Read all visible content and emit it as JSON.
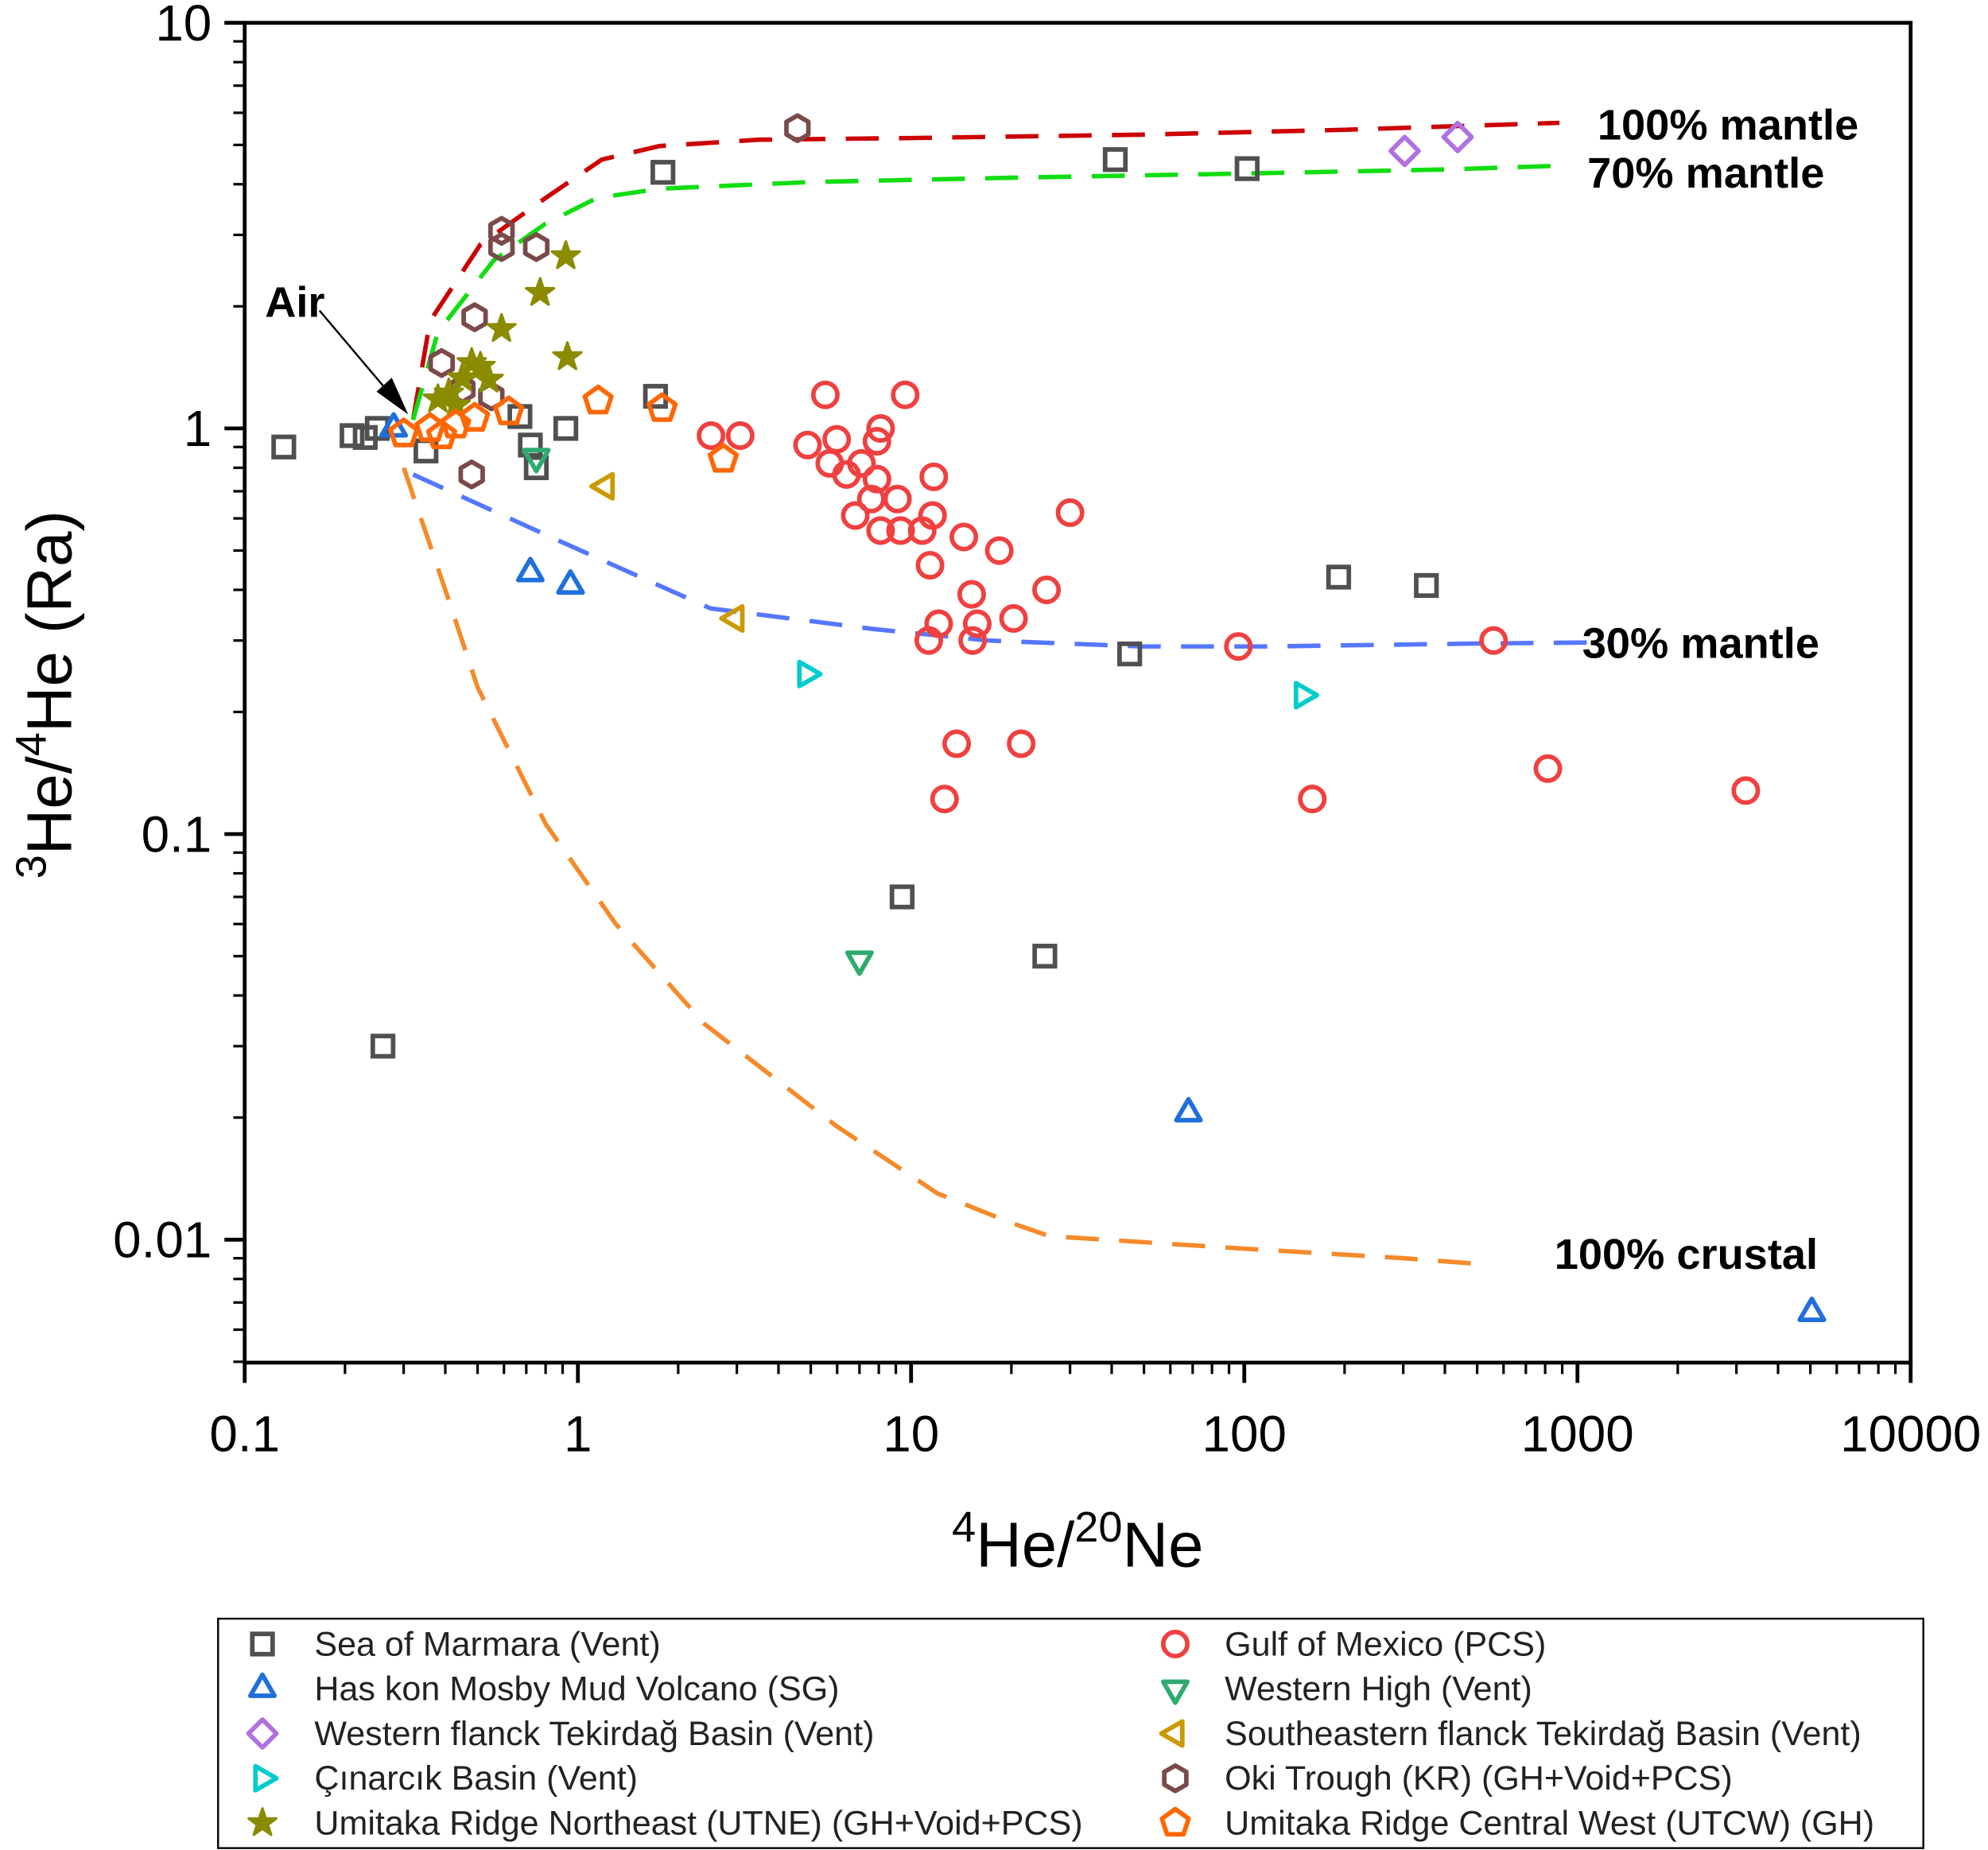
{
  "chart_data": {
    "type": "scatter",
    "xscale": "log",
    "yscale": "log",
    "xlim": [
      0.1,
      10000
    ],
    "ylim": [
      0.005,
      10
    ],
    "xticks": [
      {
        "v": 0.1,
        "label": "0.1"
      },
      {
        "v": 1,
        "label": "1"
      },
      {
        "v": 10,
        "label": "10"
      },
      {
        "v": 100,
        "label": "100"
      },
      {
        "v": 1000,
        "label": "1000"
      },
      {
        "v": 10000,
        "label": "10000"
      }
    ],
    "yticks": [
      {
        "v": 0.01,
        "label": "0.01"
      },
      {
        "v": 0.1,
        "label": "0.1"
      },
      {
        "v": 1,
        "label": "1"
      },
      {
        "v": 10,
        "label": "10"
      }
    ],
    "xlabel": {
      "sup1": "4",
      "base1": "He/",
      "sup2": "20",
      "base2": "Ne"
    },
    "ylabel": {
      "sup1": "3",
      "base1": "He/",
      "sup2": "4",
      "base2": "He (Ra)"
    },
    "grid": false,
    "legend_placement": "bottom",
    "annotations": [
      {
        "text": "Air",
        "points_to": [
          0.3,
          1.0
        ]
      }
    ],
    "curves": [
      {
        "label": "100% mantle",
        "color": "#cc0000",
        "x": [
          0.32,
          0.36,
          0.51,
          0.8,
          1.18,
          1.76,
          3.5,
          10,
          50,
          200,
          883
        ],
        "y": [
          1.05,
          1.84,
          2.84,
          3.7,
          4.6,
          4.97,
          5.15,
          5.2,
          5.3,
          5.45,
          5.67
        ]
      },
      {
        "label": "70% mantle",
        "color": "#11dd11",
        "x": [
          0.32,
          0.38,
          0.56,
          0.8,
          1.14,
          1.76,
          5,
          20,
          100,
          400,
          950
        ],
        "y": [
          1.05,
          1.73,
          2.6,
          3.2,
          3.7,
          3.9,
          4.05,
          4.15,
          4.25,
          4.35,
          4.45
        ]
      },
      {
        "label": "30% mantle",
        "color": "#5577ff",
        "x": [
          0.32,
          0.87,
          2.5,
          7.8,
          17,
          49,
          117,
          500,
          1260
        ],
        "y": [
          0.77,
          0.53,
          0.36,
          0.32,
          0.3,
          0.29,
          0.29,
          0.295,
          0.297
        ]
      },
      {
        "label": "100% crustal",
        "color": "#f58a2a",
        "x": [
          0.3,
          0.4,
          0.5,
          0.8,
          1.3,
          2.4,
          6,
          12,
          20,
          26,
          100,
          300,
          520
        ],
        "y": [
          0.8,
          0.4,
          0.23,
          0.106,
          0.06,
          0.034,
          0.019,
          0.013,
          0.011,
          0.0102,
          0.0095,
          0.009,
          0.0087
        ]
      }
    ],
    "series": [
      {
        "name": "Sea of Marmara (Vent)",
        "marker": "square",
        "color": "#505050",
        "points": [
          [
            0.131,
            0.9
          ],
          [
            0.21,
            0.96
          ],
          [
            0.23,
            0.95
          ],
          [
            0.25,
            1.0
          ],
          [
            0.26,
            0.03
          ],
          [
            0.35,
            0.88
          ],
          [
            0.67,
            1.07
          ],
          [
            0.72,
            0.91
          ],
          [
            0.75,
            0.8
          ],
          [
            0.92,
            1.0
          ],
          [
            1.71,
            1.2
          ],
          [
            1.8,
            4.28
          ],
          [
            9.4,
            0.07
          ],
          [
            25.2,
            0.05
          ],
          [
            41,
            4.6
          ],
          [
            45.3,
            0.278
          ],
          [
            102,
            4.37
          ],
          [
            192,
            0.43
          ],
          [
            352,
            0.41
          ]
        ]
      },
      {
        "name": "Gulf of Mexico (PCS)",
        "marker": "circle",
        "color": "#f04040",
        "points": [
          [
            2.51,
            0.96
          ],
          [
            3.07,
            0.96
          ],
          [
            5.53,
            1.21
          ],
          [
            9.6,
            1.21
          ],
          [
            4.89,
            0.91
          ],
          [
            5.98,
            0.94
          ],
          [
            5.7,
            0.82
          ],
          [
            6.4,
            0.77
          ],
          [
            7.1,
            0.82
          ],
          [
            7.9,
            0.93
          ],
          [
            8.1,
            1.0
          ],
          [
            6.8,
            0.61
          ],
          [
            7.6,
            0.67
          ],
          [
            7.9,
            0.75
          ],
          [
            9.1,
            0.67
          ],
          [
            8.1,
            0.56
          ],
          [
            9.3,
            0.56
          ],
          [
            10.8,
            0.56
          ],
          [
            11.7,
            0.76
          ],
          [
            11.6,
            0.61
          ],
          [
            11.4,
            0.46
          ],
          [
            14.4,
            0.54
          ],
          [
            18.4,
            0.5
          ],
          [
            30.0,
            0.62
          ],
          [
            25.5,
            0.4
          ],
          [
            15.2,
            0.39
          ],
          [
            20.3,
            0.34
          ],
          [
            15.8,
            0.33
          ],
          [
            12.1,
            0.33
          ],
          [
            11.3,
            0.3
          ],
          [
            15.3,
            0.3
          ],
          [
            13.7,
            0.167
          ],
          [
            21.4,
            0.167
          ],
          [
            12.6,
            0.122
          ],
          [
            96,
            0.29
          ],
          [
            560,
            0.3
          ],
          [
            160,
            0.122
          ],
          [
            815,
            0.145
          ],
          [
            3200,
            0.128
          ]
        ]
      },
      {
        "name": "Has kon Mosby Mud Volcano (SG)",
        "marker": "triangle-up",
        "color": "#1f6fdc",
        "points": [
          [
            0.28,
            1.0
          ],
          [
            0.72,
            0.44
          ],
          [
            0.95,
            0.41
          ],
          [
            68,
            0.0205
          ],
          [
            5050,
            0.0066
          ]
        ]
      },
      {
        "name": "Western High (Vent)",
        "marker": "triangle-down",
        "color": "#2fab6f",
        "points": [
          [
            0.75,
            0.85
          ],
          [
            7.0,
            0.049
          ]
        ]
      },
      {
        "name": "Western flanck Tekirdağ Basin (Vent)",
        "marker": "diamond",
        "color": "#b070e0",
        "points": [
          [
            303,
            4.83
          ],
          [
            437,
            5.23
          ]
        ]
      },
      {
        "name": "Southeastern flanck Tekirdağ Basin (Vent)",
        "marker": "triangle-left",
        "color": "#cc9900",
        "points": [
          [
            1.21,
            0.72
          ],
          [
            2.97,
            0.34
          ]
        ]
      },
      {
        "name": "Çınarcık Basin (Vent)",
        "marker": "triangle-right",
        "color": "#00cccc",
        "points": [
          [
            4.85,
            0.248
          ],
          [
            150,
            0.22
          ]
        ]
      },
      {
        "name": "Oki Trough (KR) (GH+Void+PCS)",
        "marker": "hexagon",
        "color": "#7a4a4a",
        "points": [
          [
            4.56,
            5.5
          ],
          [
            0.59,
            3.07
          ],
          [
            0.59,
            2.8
          ],
          [
            0.75,
            2.8
          ],
          [
            0.49,
            1.88
          ],
          [
            0.39,
            1.45
          ],
          [
            0.48,
            0.77
          ],
          [
            0.55,
            1.2
          ],
          [
            0.45,
            1.25
          ]
        ]
      },
      {
        "name": "Umitaka Ridge Northeast (UTNE) (GH+Void+PCS)",
        "marker": "star",
        "color": "#8b8b00",
        "points": [
          [
            0.92,
            2.66
          ],
          [
            0.77,
            2.16
          ],
          [
            0.59,
            1.76
          ],
          [
            0.93,
            1.5
          ],
          [
            0.48,
            1.45
          ],
          [
            0.51,
            1.42
          ],
          [
            0.45,
            1.33
          ],
          [
            0.41,
            1.22
          ],
          [
            0.54,
            1.32
          ],
          [
            0.38,
            1.18
          ],
          [
            0.43,
            1.14
          ]
        ]
      },
      {
        "name": "Umitaka Ridge Central West (UTCW) (GH)",
        "marker": "pentagon",
        "color": "#ff6600",
        "points": [
          [
            0.3,
            0.97
          ],
          [
            0.36,
            1.0
          ],
          [
            0.39,
            0.96
          ],
          [
            0.43,
            1.02
          ],
          [
            0.49,
            1.06
          ],
          [
            0.62,
            1.1
          ],
          [
            1.15,
            1.17
          ],
          [
            1.79,
            1.12
          ],
          [
            2.73,
            0.84
          ]
        ]
      }
    ]
  }
}
